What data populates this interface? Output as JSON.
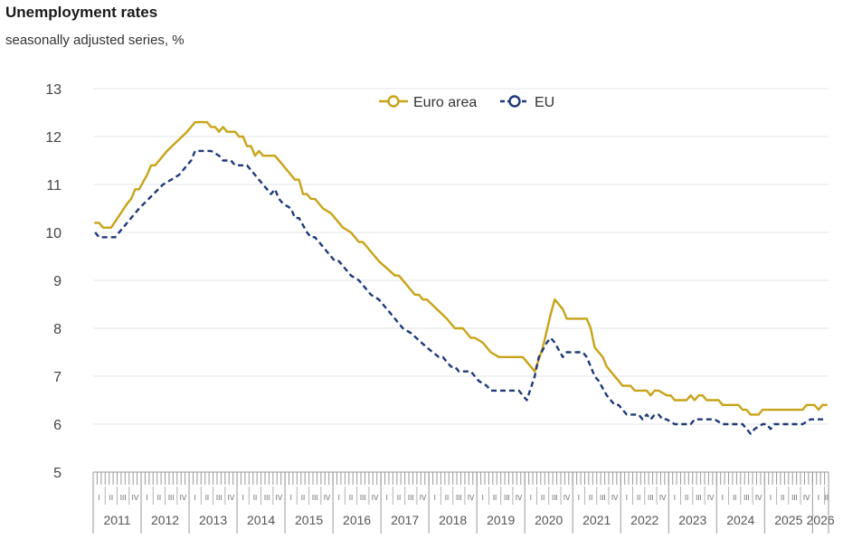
{
  "chart_data": {
    "type": "line",
    "title": "Unemployment rates",
    "subtitle": "seasonally adjusted series, %",
    "ylim": [
      5,
      13
    ],
    "yticks": [
      5,
      6,
      7,
      8,
      9,
      10,
      11,
      12,
      13
    ],
    "years": [
      "2011",
      "2012",
      "2013",
      "2014",
      "2015",
      "2016",
      "2017",
      "2018",
      "2019",
      "2020",
      "2021",
      "2022",
      "2023",
      "2024",
      "2025",
      "2026"
    ],
    "quarters": [
      "I",
      "II",
      "III",
      "IV"
    ],
    "x_start": "2011-01",
    "x_end": "2026-04",
    "legend_position": "top-center",
    "series": [
      {
        "name": "Euro area",
        "color": "#c9a317",
        "style": "solid",
        "points": [
          [
            "2011-01",
            10.2
          ],
          [
            "2011-02",
            10.2
          ],
          [
            "2011-03",
            10.1
          ],
          [
            "2011-05",
            10.1
          ],
          [
            "2011-09",
            10.6
          ],
          [
            "2011-10",
            10.7
          ],
          [
            "2011-11",
            10.9
          ],
          [
            "2011-12",
            10.9
          ],
          [
            "2012-02",
            11.2
          ],
          [
            "2012-03",
            11.4
          ],
          [
            "2012-04",
            11.4
          ],
          [
            "2012-07",
            11.7
          ],
          [
            "2012-12",
            12.1
          ],
          [
            "2013-02",
            12.3
          ],
          [
            "2013-05",
            12.3
          ],
          [
            "2013-06",
            12.2
          ],
          [
            "2013-07",
            12.2
          ],
          [
            "2013-08",
            12.1
          ],
          [
            "2013-09",
            12.2
          ],
          [
            "2013-10",
            12.1
          ],
          [
            "2013-12",
            12.1
          ],
          [
            "2014-01",
            12.0
          ],
          [
            "2014-02",
            12.0
          ],
          [
            "2014-03",
            11.8
          ],
          [
            "2014-04",
            11.8
          ],
          [
            "2014-05",
            11.6
          ],
          [
            "2014-06",
            11.7
          ],
          [
            "2014-07",
            11.6
          ],
          [
            "2014-10",
            11.6
          ],
          [
            "2014-12",
            11.4
          ],
          [
            "2015-01",
            11.3
          ],
          [
            "2015-03",
            11.1
          ],
          [
            "2015-04",
            11.1
          ],
          [
            "2015-05",
            10.8
          ],
          [
            "2015-06",
            10.8
          ],
          [
            "2015-07",
            10.7
          ],
          [
            "2015-08",
            10.7
          ],
          [
            "2015-10",
            10.5
          ],
          [
            "2015-12",
            10.4
          ],
          [
            "2016-01",
            10.3
          ],
          [
            "2016-03",
            10.1
          ],
          [
            "2016-05",
            10.0
          ],
          [
            "2016-07",
            9.8
          ],
          [
            "2016-08",
            9.8
          ],
          [
            "2016-12",
            9.4
          ],
          [
            "2017-04",
            9.1
          ],
          [
            "2017-05",
            9.1
          ],
          [
            "2017-08",
            8.8
          ],
          [
            "2017-09",
            8.7
          ],
          [
            "2017-10",
            8.7
          ],
          [
            "2017-11",
            8.6
          ],
          [
            "2017-12",
            8.6
          ],
          [
            "2018-05",
            8.2
          ],
          [
            "2018-07",
            8.0
          ],
          [
            "2018-08",
            8.0
          ],
          [
            "2018-09",
            8.0
          ],
          [
            "2018-11",
            7.8
          ],
          [
            "2018-12",
            7.8
          ],
          [
            "2019-02",
            7.7
          ],
          [
            "2019-04",
            7.5
          ],
          [
            "2019-06",
            7.4
          ],
          [
            "2019-12",
            7.4
          ],
          [
            "2020-01",
            7.3
          ],
          [
            "2020-03",
            7.1
          ],
          [
            "2020-05",
            7.6
          ],
          [
            "2020-07",
            8.3
          ],
          [
            "2020-08",
            8.6
          ],
          [
            "2020-09",
            8.5
          ],
          [
            "2020-10",
            8.4
          ],
          [
            "2020-11",
            8.2
          ],
          [
            "2020-12",
            8.2
          ],
          [
            "2021-04",
            8.2
          ],
          [
            "2021-05",
            8.0
          ],
          [
            "2021-06",
            7.6
          ],
          [
            "2021-08",
            7.4
          ],
          [
            "2021-09",
            7.2
          ],
          [
            "2021-10",
            7.1
          ],
          [
            "2021-12",
            6.9
          ],
          [
            "2022-01",
            6.8
          ],
          [
            "2022-03",
            6.8
          ],
          [
            "2022-04",
            6.7
          ],
          [
            "2022-07",
            6.7
          ],
          [
            "2022-08",
            6.6
          ],
          [
            "2022-09",
            6.7
          ],
          [
            "2022-10",
            6.7
          ],
          [
            "2022-12",
            6.6
          ],
          [
            "2023-01",
            6.6
          ],
          [
            "2023-02",
            6.5
          ],
          [
            "2023-05",
            6.5
          ],
          [
            "2023-06",
            6.6
          ],
          [
            "2023-07",
            6.5
          ],
          [
            "2023-08",
            6.6
          ],
          [
            "2023-09",
            6.6
          ],
          [
            "2023-10",
            6.5
          ],
          [
            "2023-12",
            6.5
          ],
          [
            "2024-01",
            6.5
          ],
          [
            "2024-02",
            6.4
          ],
          [
            "2024-06",
            6.4
          ],
          [
            "2024-07",
            6.3
          ],
          [
            "2024-08",
            6.3
          ],
          [
            "2024-09",
            6.2
          ],
          [
            "2024-10",
            6.2
          ],
          [
            "2024-11",
            6.2
          ],
          [
            "2024-12",
            6.3
          ],
          [
            "2025-10",
            6.3
          ],
          [
            "2025-11",
            6.4
          ],
          [
            "2025-12",
            6.4
          ],
          [
            "2026-01",
            6.4
          ],
          [
            "2026-02",
            6.3
          ],
          [
            "2026-03",
            6.4
          ],
          [
            "2026-04",
            6.4
          ]
        ]
      },
      {
        "name": "EU",
        "color": "#1f3a7a",
        "style": "dashed",
        "points": [
          [
            "2011-01",
            10.0
          ],
          [
            "2011-02",
            9.9
          ],
          [
            "2011-06",
            9.9
          ],
          [
            "2011-08",
            10.1
          ],
          [
            "2011-12",
            10.5
          ],
          [
            "2012-06",
            11.0
          ],
          [
            "2012-08",
            11.1
          ],
          [
            "2012-10",
            11.2
          ],
          [
            "2012-12",
            11.4
          ],
          [
            "2013-01",
            11.5
          ],
          [
            "2013-02",
            11.7
          ],
          [
            "2013-06",
            11.7
          ],
          [
            "2013-08",
            11.6
          ],
          [
            "2013-09",
            11.5
          ],
          [
            "2013-11",
            11.5
          ],
          [
            "2013-12",
            11.4
          ],
          [
            "2014-03",
            11.4
          ],
          [
            "2014-05",
            11.2
          ],
          [
            "2014-07",
            11.0
          ],
          [
            "2014-08",
            10.9
          ],
          [
            "2014-09",
            10.8
          ],
          [
            "2014-10",
            10.9
          ],
          [
            "2014-11",
            10.7
          ],
          [
            "2014-12",
            10.6
          ],
          [
            "2015-02",
            10.5
          ],
          [
            "2015-03",
            10.3
          ],
          [
            "2015-04",
            10.3
          ],
          [
            "2015-06",
            10.0
          ],
          [
            "2015-07",
            9.9
          ],
          [
            "2015-08",
            9.9
          ],
          [
            "2015-10",
            9.7
          ],
          [
            "2016-01",
            9.4
          ],
          [
            "2016-02",
            9.4
          ],
          [
            "2016-03",
            9.3
          ],
          [
            "2016-05",
            9.1
          ],
          [
            "2016-07",
            9.0
          ],
          [
            "2016-09",
            8.8
          ],
          [
            "2016-10",
            8.7
          ],
          [
            "2016-12",
            8.6
          ],
          [
            "2017-02",
            8.4
          ],
          [
            "2017-04",
            8.2
          ],
          [
            "2017-06",
            8.0
          ],
          [
            "2017-08",
            7.9
          ],
          [
            "2017-12",
            7.6
          ],
          [
            "2018-03",
            7.4
          ],
          [
            "2018-04",
            7.4
          ],
          [
            "2018-06",
            7.2
          ],
          [
            "2018-07",
            7.2
          ],
          [
            "2018-08",
            7.1
          ],
          [
            "2018-11",
            7.1
          ],
          [
            "2019-01",
            6.9
          ],
          [
            "2019-03",
            6.8
          ],
          [
            "2019-04",
            6.7
          ],
          [
            "2019-11",
            6.7
          ],
          [
            "2019-12",
            6.6
          ],
          [
            "2020-01",
            6.5
          ],
          [
            "2020-03",
            7.0
          ],
          [
            "2020-04",
            7.4
          ],
          [
            "2020-06",
            7.7
          ],
          [
            "2020-07",
            7.8
          ],
          [
            "2020-08",
            7.7
          ],
          [
            "2020-10",
            7.4
          ],
          [
            "2020-11",
            7.5
          ],
          [
            "2021-03",
            7.5
          ],
          [
            "2021-04",
            7.4
          ],
          [
            "2021-06",
            7.0
          ],
          [
            "2021-07",
            6.9
          ],
          [
            "2021-09",
            6.6
          ],
          [
            "2021-10",
            6.5
          ],
          [
            "2021-11",
            6.4
          ],
          [
            "2021-12",
            6.4
          ],
          [
            "2022-01",
            6.3
          ],
          [
            "2022-02",
            6.2
          ],
          [
            "2022-05",
            6.2
          ],
          [
            "2022-06",
            6.1
          ],
          [
            "2022-07",
            6.2
          ],
          [
            "2022-08",
            6.1
          ],
          [
            "2022-09",
            6.2
          ],
          [
            "2022-10",
            6.2
          ],
          [
            "2022-11",
            6.1
          ],
          [
            "2022-12",
            6.1
          ],
          [
            "2023-02",
            6.0
          ],
          [
            "2023-06",
            6.0
          ],
          [
            "2023-07",
            6.1
          ],
          [
            "2023-09",
            6.1
          ],
          [
            "2023-12",
            6.1
          ],
          [
            "2024-02",
            6.0
          ],
          [
            "2024-07",
            6.0
          ],
          [
            "2024-08",
            5.9
          ],
          [
            "2024-09",
            5.8
          ],
          [
            "2024-10",
            5.9
          ],
          [
            "2024-12",
            6.0
          ],
          [
            "2025-01",
            6.0
          ],
          [
            "2025-02",
            5.9
          ],
          [
            "2025-03",
            6.0
          ],
          [
            "2025-10",
            6.0
          ],
          [
            "2025-12",
            6.1
          ],
          [
            "2026-04",
            6.1
          ]
        ]
      }
    ]
  }
}
